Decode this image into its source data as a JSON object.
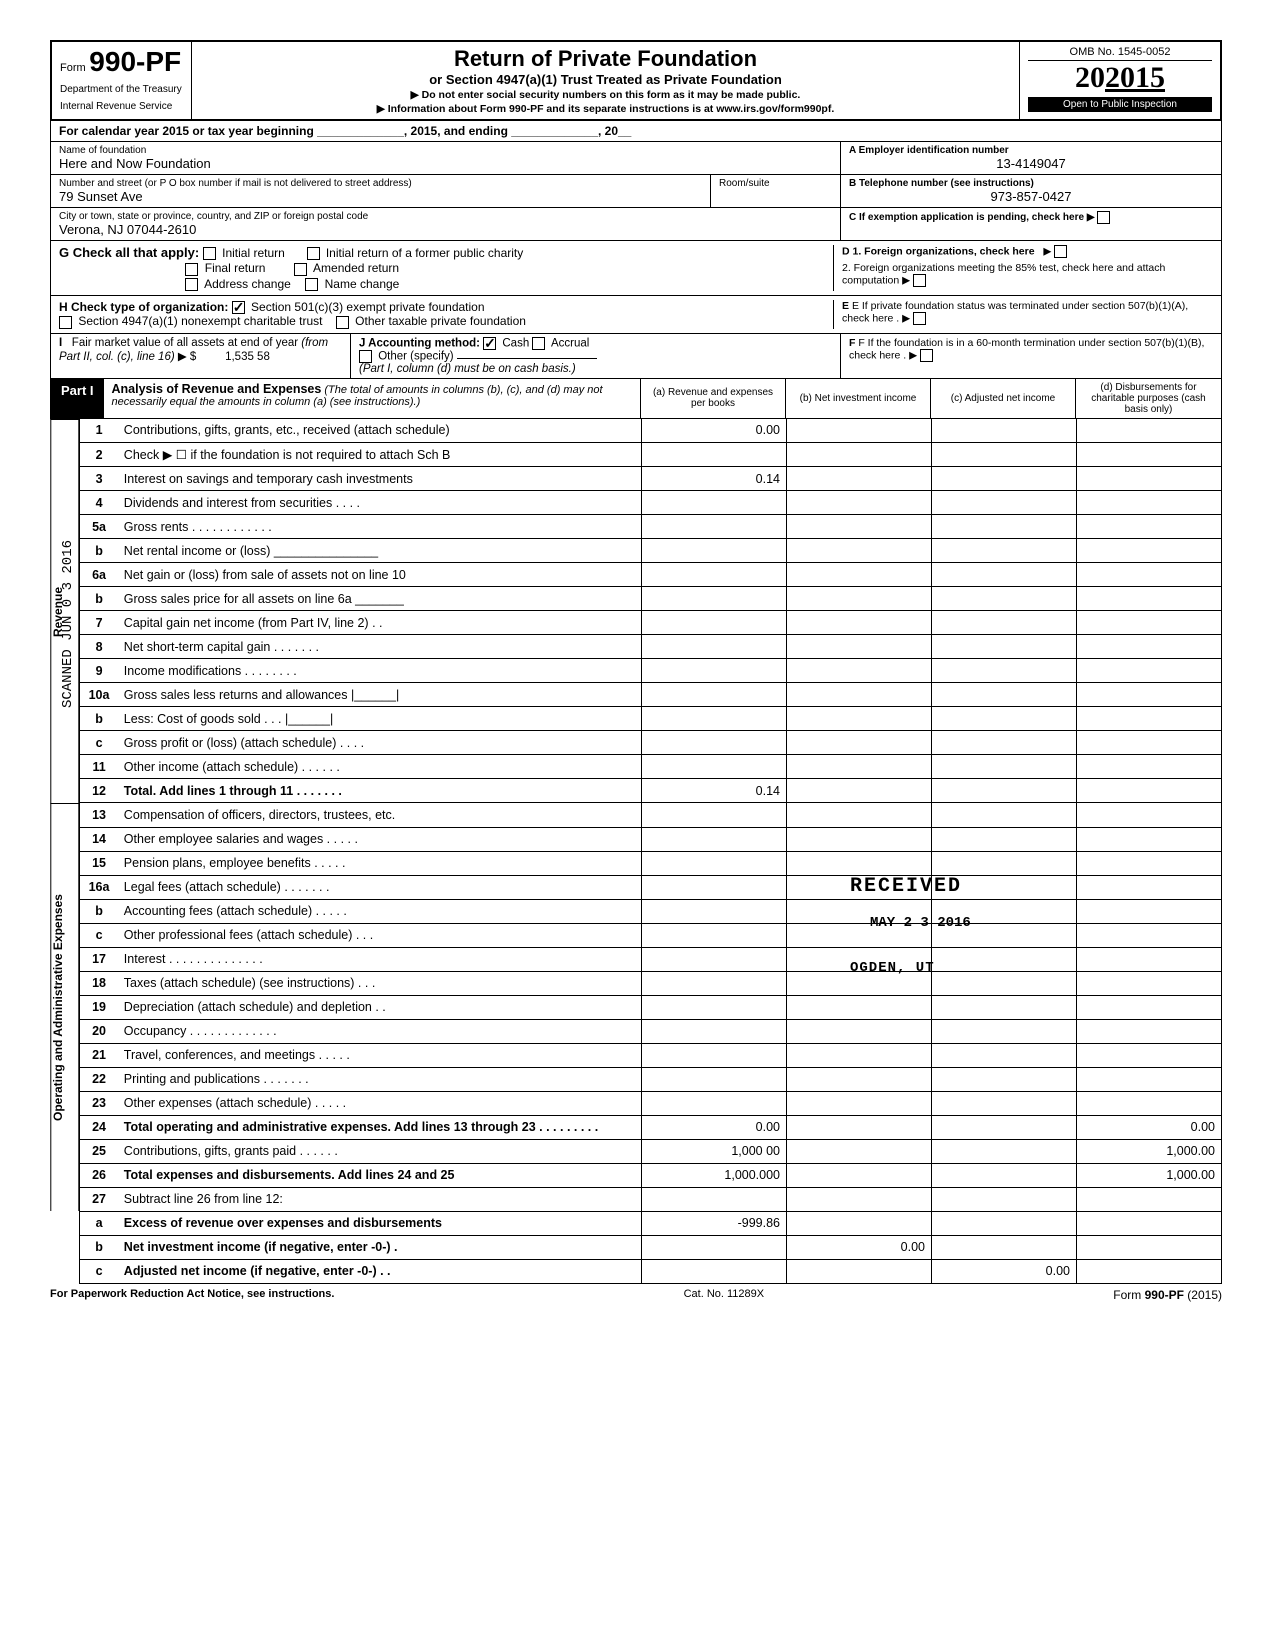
{
  "form": {
    "number_prefix": "Form",
    "number": "990-PF",
    "dept1": "Department of the Treasury",
    "dept2": "Internal Revenue Service",
    "title": "Return of Private Foundation",
    "subtitle": "or Section 4947(a)(1) Trust Treated as Private Foundation",
    "instr1": "▶ Do not enter social security numbers on this form as it may be made public.",
    "instr2": "▶ Information about Form 990-PF and its separate instructions is at www.irs.gov/form990pf.",
    "omb": "OMB No. 1545-0052",
    "year": "2015",
    "open": "Open to Public Inspection"
  },
  "cal_year": "For calendar year 2015 or tax year beginning _____________, 2015, and ending _____________, 20__",
  "foundation": {
    "name_label": "Name of foundation",
    "name": "Here and Now Foundation",
    "ein_label": "A  Employer identification number",
    "ein": "13-4149047",
    "addr_label": "Number and street (or P O box number if mail is not delivered to street address)",
    "addr": "79 Sunset Ave",
    "room_label": "Room/suite",
    "room": "",
    "phone_label": "B  Telephone number (see instructions)",
    "phone": "973-857-0427",
    "city_label": "City or town, state or province, country, and ZIP or foreign postal code",
    "city": "Verona, NJ  07044-2610",
    "c_label": "C  If exemption application is pending, check here ▶"
  },
  "section_g": {
    "label": "G  Check all that apply:",
    "opts": [
      "Initial return",
      "Initial return of a former public charity",
      "Final return",
      "Amended return",
      "Address change",
      "Name change"
    ],
    "d1": "D  1. Foreign organizations, check here",
    "d2": "2. Foreign organizations meeting the 85% test, check here and attach computation",
    "e": "E  If private foundation status was terminated under section 507(b)(1)(A), check here"
  },
  "section_h": {
    "label": "H  Check type of organization:",
    "opt1": "Section 501(c)(3) exempt private foundation",
    "opt2": "Section 4947(a)(1) nonexempt charitable trust",
    "opt3": "Other taxable private foundation"
  },
  "section_i": {
    "label": "I   Fair market value of all assets at end of year  (from Part II, col. (c), line 16) ▶ $",
    "value": "1,535 58",
    "j_label": "J   Accounting method:",
    "j_cash": "Cash",
    "j_accrual": "Accrual",
    "j_other": "Other (specify)",
    "j_note": "(Part I, column (d) must be on cash basis.)",
    "f": "F  If the foundation is in a 60-month termination under section 507(b)(1)(B), check here"
  },
  "part1": {
    "label": "Part I",
    "title": "Analysis of Revenue and Expenses",
    "note": "(The total of amounts in columns (b), (c), and (d) may not necessarily equal the amounts in column (a) (see instructions).)",
    "col_a": "(a) Revenue and expenses per books",
    "col_b": "(b) Net investment income",
    "col_c": "(c) Adjusted net income",
    "col_d": "(d) Disbursements for charitable purposes (cash basis only)"
  },
  "side_revenue": "Revenue",
  "side_expenses": "Operating and Administrative Expenses",
  "side_scanned": "SCANNED  JUN 0 3 2016",
  "rows": [
    {
      "n": "1",
      "d": "Contributions, gifts, grants, etc., received (attach schedule)",
      "a": "0.00"
    },
    {
      "n": "2",
      "d": "Check ▶ ☐ if the foundation is not required to attach Sch B"
    },
    {
      "n": "3",
      "d": "Interest on savings and temporary cash investments",
      "a": "0.14"
    },
    {
      "n": "4",
      "d": "Dividends and interest from securities . . . ."
    },
    {
      "n": "5a",
      "d": "Gross rents . . . . . . . . . . . ."
    },
    {
      "n": "b",
      "d": "Net rental income or (loss) _______________"
    },
    {
      "n": "6a",
      "d": "Net gain or (loss) from sale of assets not on line 10"
    },
    {
      "n": "b",
      "d": "Gross sales price for all assets on line 6a _______"
    },
    {
      "n": "7",
      "d": "Capital gain net income (from Part IV, line 2) . ."
    },
    {
      "n": "8",
      "d": "Net short-term capital gain . . . . . . ."
    },
    {
      "n": "9",
      "d": "Income modifications  . . . . . . . ."
    },
    {
      "n": "10a",
      "d": "Gross sales less returns and allowances |______|"
    },
    {
      "n": "b",
      "d": "Less: Cost of goods sold  . . . |______|"
    },
    {
      "n": "c",
      "d": "Gross profit or (loss) (attach schedule) . . . ."
    },
    {
      "n": "11",
      "d": "Other income (attach schedule) . . . . . ."
    },
    {
      "n": "12",
      "d": "Total. Add lines 1 through 11 . . . . . . .",
      "bold": true,
      "a": "0.14"
    },
    {
      "n": "13",
      "d": "Compensation of officers, directors, trustees, etc."
    },
    {
      "n": "14",
      "d": "Other employee salaries and wages . . . . ."
    },
    {
      "n": "15",
      "d": "Pension plans, employee benefits  . . . . ."
    },
    {
      "n": "16a",
      "d": "Legal fees (attach schedule)  . . . . . . ."
    },
    {
      "n": "b",
      "d": "Accounting fees (attach schedule) . . . . ."
    },
    {
      "n": "c",
      "d": "Other professional fees (attach schedule) . . ."
    },
    {
      "n": "17",
      "d": "Interest . . . . . . . . . . . . . ."
    },
    {
      "n": "18",
      "d": "Taxes (attach schedule) (see instructions) . . ."
    },
    {
      "n": "19",
      "d": "Depreciation (attach schedule) and depletion . ."
    },
    {
      "n": "20",
      "d": "Occupancy . . . . . . . . . . . . ."
    },
    {
      "n": "21",
      "d": "Travel, conferences, and meetings . . . . ."
    },
    {
      "n": "22",
      "d": "Printing and publications  . . . . . . ."
    },
    {
      "n": "23",
      "d": "Other expenses (attach schedule)  . . . . ."
    },
    {
      "n": "24",
      "d": "Total operating and administrative expenses. Add lines 13 through 23 . . . . . . . . .",
      "bold": true,
      "a": "0.00",
      "dd": "0.00"
    },
    {
      "n": "25",
      "d": "Contributions, gifts, grants paid . . . . . .",
      "a": "1,000 00",
      "dd": "1,000.00"
    },
    {
      "n": "26",
      "d": "Total expenses and disbursements. Add lines 24 and 25",
      "bold": true,
      "a": "1,000.000",
      "dd": "1,000.00"
    },
    {
      "n": "27",
      "d": "Subtract line 26 from line 12:"
    },
    {
      "n": "a",
      "d": "Excess of revenue over expenses and disbursements",
      "bold": true,
      "a": "-999.86"
    },
    {
      "n": "b",
      "d": "Net investment income (if negative, enter -0-) .",
      "bold": true,
      "b": "0.00"
    },
    {
      "n": "c",
      "d": "Adjusted net income (if negative, enter -0-) . .",
      "bold": true,
      "c": "0.00"
    }
  ],
  "footer": {
    "left": "For Paperwork Reduction Act Notice, see instructions.",
    "mid": "Cat. No. 11289X",
    "right": "Form 990-PF (2015)"
  },
  "stamps": {
    "received": "RECEIVED",
    "date": "MAY 2 3 2016",
    "ogden": "OGDEN, UT"
  }
}
